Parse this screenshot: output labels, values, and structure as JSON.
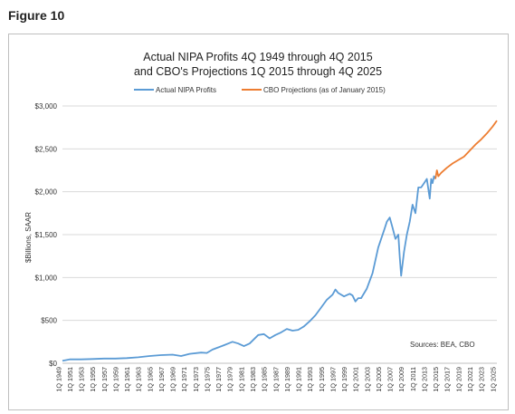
{
  "figure_label": "Figure 10",
  "colors": {
    "actual": "#5b9bd5",
    "projection": "#ed7d31",
    "grid": "#d9d9d9",
    "text": "#333333"
  },
  "chart_data": {
    "type": "line",
    "title_lines": [
      "Actual NIPA Profits 4Q  1949 through 4Q 2015",
      "and CBO's Projections 1Q 2015 through 4Q 2025"
    ],
    "xlabel": "",
    "ylabel": "$Billions, SAAR",
    "ylim": [
      0,
      3000
    ],
    "yticks": [
      0,
      500,
      1000,
      1500,
      2000,
      2500,
      3000
    ],
    "ytick_labels": [
      "$0",
      "$500",
      "$1,000",
      "$1,500",
      "$2,000",
      "$2,500",
      "$3,000"
    ],
    "xlim": [
      1949.75,
      2025.75
    ],
    "xtick_labels": [
      "1Q 1949",
      "1Q 1951",
      "1Q 1953",
      "1Q 1955",
      "1Q 1957",
      "1Q 1959",
      "1Q 1961",
      "1Q 1963",
      "1Q 1965",
      "1Q 1967",
      "1Q 1969",
      "1Q 1971",
      "1Q 1973",
      "1Q 1975",
      "1Q 1977",
      "1Q 1979",
      "1Q 1981",
      "1Q 1983",
      "1Q 1985",
      "1Q 1987",
      "1Q 1989",
      "1Q 1991",
      "1Q 1993",
      "1Q 1995",
      "1Q 1997",
      "1Q 1999",
      "1Q 2001",
      "1Q 2003",
      "1Q 2005",
      "1Q 2007",
      "1Q 2009",
      "1Q 2011",
      "1Q 2013",
      "1Q 2015",
      "1Q 2017",
      "1Q 2019",
      "1Q 2021",
      "1Q 2023",
      "1Q 2025"
    ],
    "grid": "horizontal",
    "legend_position": "top",
    "annotation": "Sources: BEA, CBO",
    "series": [
      {
        "name": "Actual NIPA Profits",
        "x": [
          1949.75,
          1951,
          1953,
          1955,
          1957,
          1959,
          1961,
          1963,
          1965,
          1967,
          1969,
          1970.5,
          1972,
          1974,
          1975,
          1976,
          1978,
          1979.5,
          1980.5,
          1981.5,
          1982.5,
          1984,
          1985,
          1986,
          1987,
          1988,
          1989,
          1990,
          1991,
          1992,
          1993,
          1994,
          1995,
          1996,
          1997,
          1997.5,
          1998,
          1999,
          2000,
          2000.5,
          2001,
          2001.5,
          2002,
          2003,
          2004,
          2005,
          2006,
          2006.5,
          2007,
          2007.5,
          2008,
          2008.5,
          2008.75,
          2009,
          2009.5,
          2010,
          2010.5,
          2011,
          2011.5,
          2012,
          2012.5,
          2013,
          2013.5,
          2014,
          2014.25,
          2014.5,
          2014.75,
          2015
        ],
        "y": [
          30,
          45,
          45,
          50,
          55,
          55,
          60,
          70,
          85,
          95,
          100,
          85,
          110,
          125,
          120,
          160,
          210,
          250,
          230,
          200,
          230,
          330,
          340,
          290,
          330,
          360,
          400,
          380,
          390,
          430,
          490,
          560,
          650,
          740,
          800,
          860,
          820,
          780,
          810,
          790,
          720,
          760,
          760,
          870,
          1050,
          1350,
          1550,
          1650,
          1700,
          1580,
          1450,
          1500,
          1250,
          1020,
          1300,
          1500,
          1650,
          1850,
          1750,
          2050,
          2050,
          2100,
          2150,
          1920,
          2150,
          2100,
          2180,
          2150
        ]
      },
      {
        "name": "CBO Projections (as of January 2015)",
        "x": [
          2015,
          2015.25,
          2015.5,
          2016,
          2017,
          2018,
          2019,
          2020,
          2021,
          2022,
          2023,
          2024,
          2025,
          2025.75
        ],
        "y": [
          2150,
          2250,
          2180,
          2220,
          2280,
          2330,
          2370,
          2410,
          2480,
          2550,
          2610,
          2680,
          2760,
          2830
        ]
      }
    ]
  }
}
